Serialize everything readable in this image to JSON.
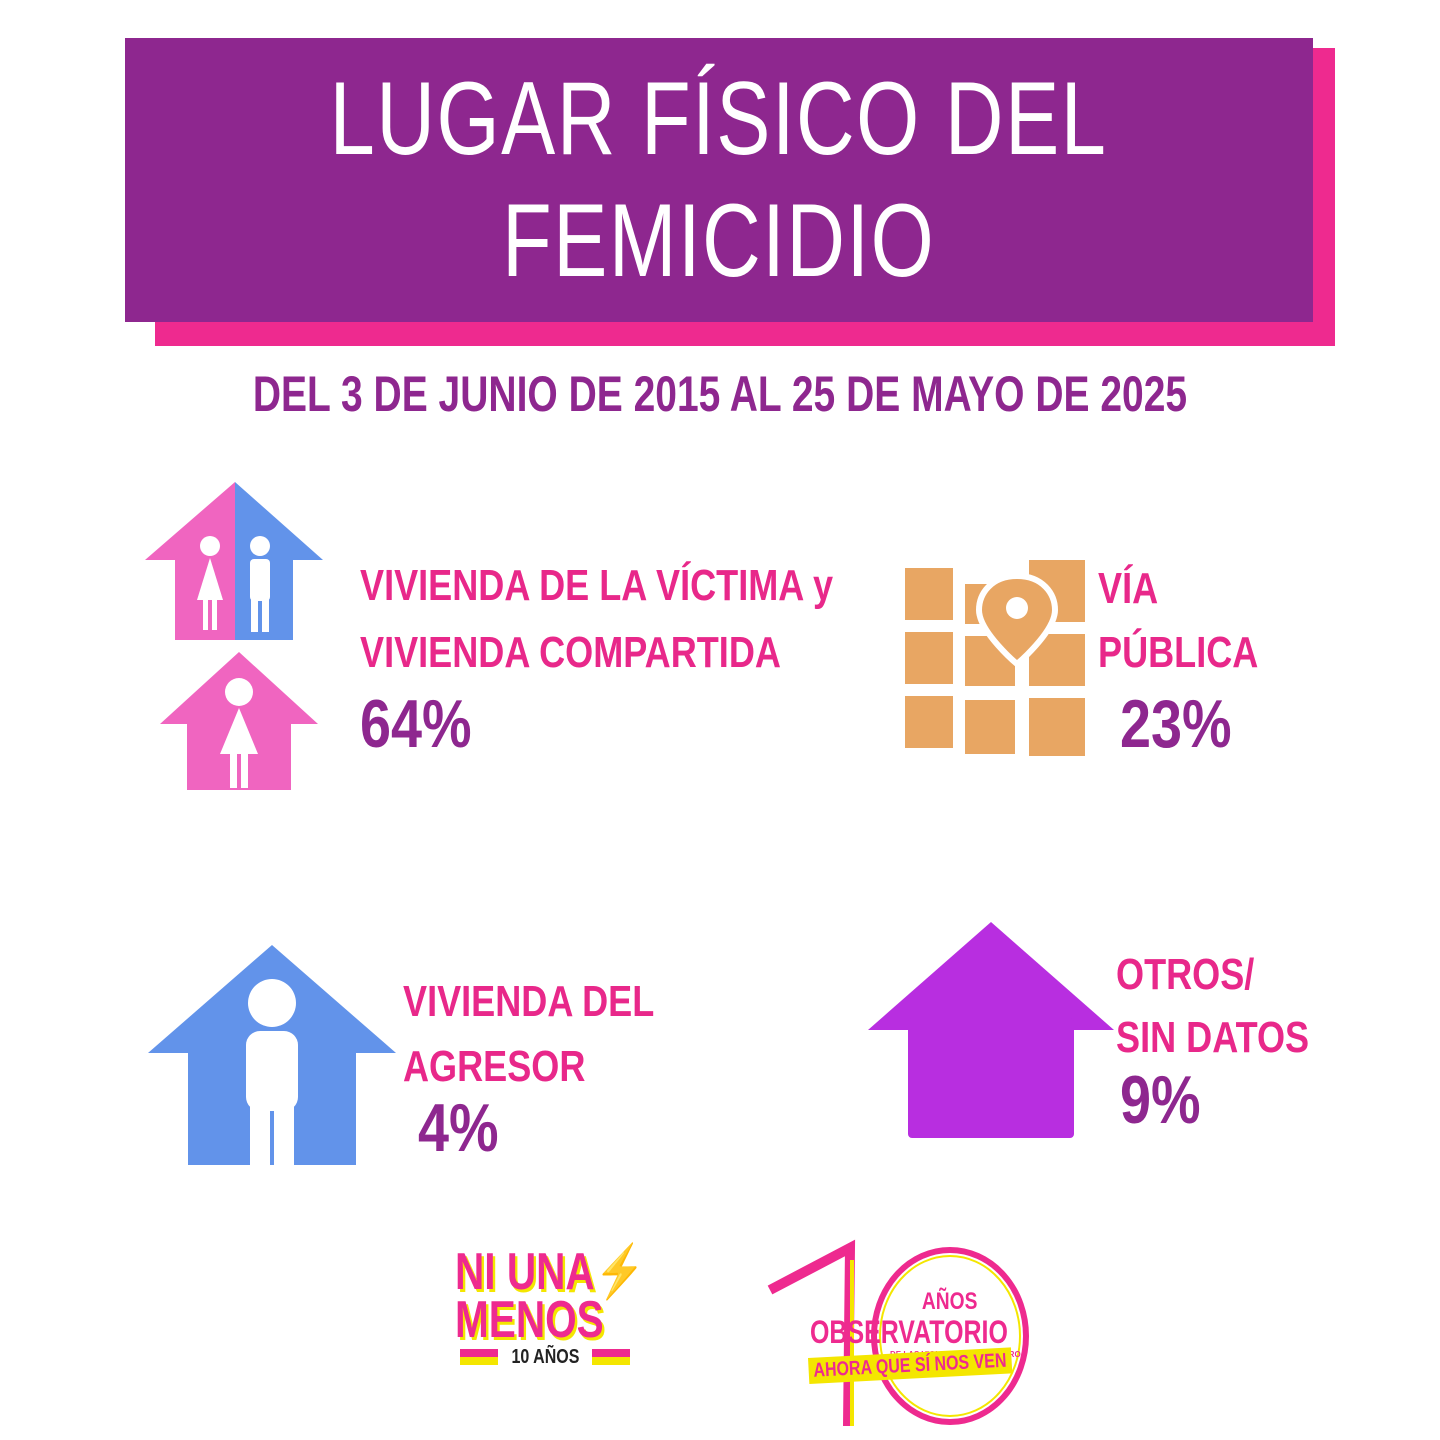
{
  "header": {
    "title_line1": "LUGAR FÍSICO DEL",
    "title_line2": "FEMICIDIO",
    "subtitle": "DEL 3 DE JUNIO DE 2015 AL 25 DE MAYO DE 2025"
  },
  "stats": {
    "victima": {
      "line1": "VIVIENDA DE LA VÍCTIMA y",
      "line2": "VIVIENDA COMPARTIDA",
      "percent": "64%",
      "value": 64
    },
    "via_publica": {
      "line1": "VÍA",
      "line2": "PÚBLICA",
      "percent": "23%",
      "value": 23
    },
    "agresor": {
      "line1": "VIVIENDA DEL",
      "line2": "AGRESOR",
      "percent": "4%",
      "value": 4
    },
    "otros": {
      "line1": "OTROS/",
      "line2": "SIN DATOS",
      "percent": "9%",
      "value": 9
    }
  },
  "icons": {
    "victima": "shared-house-icon",
    "victima_secondary": "woman-house-icon",
    "via_publica": "map-pin-icon",
    "agresor": "man-house-icon",
    "otros": "house-icon"
  },
  "logos": {
    "ni_una_menos": {
      "line1": "NI UNA",
      "bolt": "⚡",
      "line2": "MENOS",
      "years": "10 AÑOS"
    },
    "observatorio": {
      "anios": "AÑOS",
      "name": "OBSERVATORIO",
      "small": "DE LAS VIOLENCIAS DE GÉNERO",
      "tagline": "AHORA QUE SÍ NOS VEN"
    }
  },
  "colors": {
    "purple": "#8e278f",
    "pink": "#ee2a8f",
    "label_pink": "#e8288a",
    "blue": "#6293ea",
    "house_pink": "#f065c0",
    "map_orange": "#e8a663",
    "violet": "#b82ee0",
    "yellow": "#f4e600"
  }
}
